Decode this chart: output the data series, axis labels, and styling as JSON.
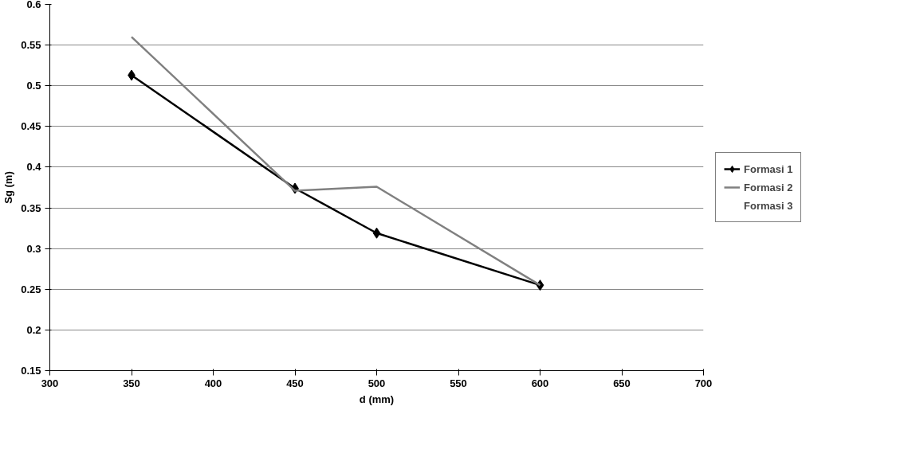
{
  "chart_data": {
    "type": "line",
    "xlabel": "d (mm)",
    "ylabel": "Sg (m)",
    "x": [
      350,
      450,
      500,
      600
    ],
    "series": [
      {
        "name": "Formasi 1",
        "color": "#000000",
        "marker": "diamond",
        "values": [
          0.513,
          0.374,
          0.319,
          0.255
        ]
      },
      {
        "name": "Formasi 2",
        "color": "#808080",
        "marker": "none",
        "values": [
          0.56,
          0.371,
          0.376,
          0.255
        ]
      },
      {
        "name": "Formasi 3",
        "marker": "none",
        "values": [
          null,
          null,
          null,
          null
        ]
      }
    ],
    "xlim": [
      300,
      700
    ],
    "xticks": [
      300,
      350,
      400,
      450,
      500,
      550,
      600,
      650,
      700
    ],
    "ylim": [
      0.15,
      0.6
    ],
    "yticks": [
      0.15,
      0.2,
      0.25,
      0.3,
      0.35,
      0.4,
      0.45,
      0.5,
      0.55,
      0.6
    ],
    "grid": "y",
    "legend": "right"
  }
}
